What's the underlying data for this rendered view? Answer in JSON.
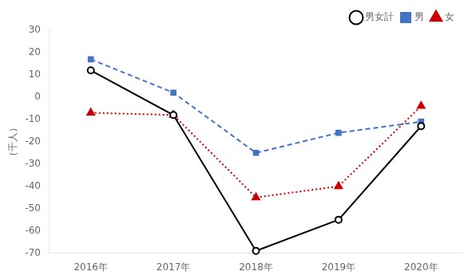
{
  "chart_data": {
    "type": "line",
    "ylabel": "（千人）",
    "categories": [
      "2016年",
      "2017年",
      "2018年",
      "2019年",
      "2020年"
    ],
    "series": [
      {
        "name": "男女計",
        "color": "#000000",
        "values": [
          12,
          -8,
          -69,
          -55,
          -13
        ],
        "marker": "circle",
        "line_style": "solid"
      },
      {
        "name": "男",
        "color": "#4472c4",
        "values": [
          17,
          2,
          -25,
          -16,
          -11
        ],
        "marker": "square",
        "line_style": "dashed"
      },
      {
        "name": "女",
        "color": "#cc0000",
        "values": [
          -7,
          -8,
          -45,
          -40,
          -4
        ],
        "marker": "triangle",
        "line_style": "dotted"
      }
    ],
    "ylim": [
      -70,
      30
    ],
    "yticks": [
      -70,
      -60,
      -50,
      -40,
      -30,
      -20,
      -10,
      0,
      10,
      20,
      30
    ],
    "grid": false,
    "legend": "upper right"
  }
}
